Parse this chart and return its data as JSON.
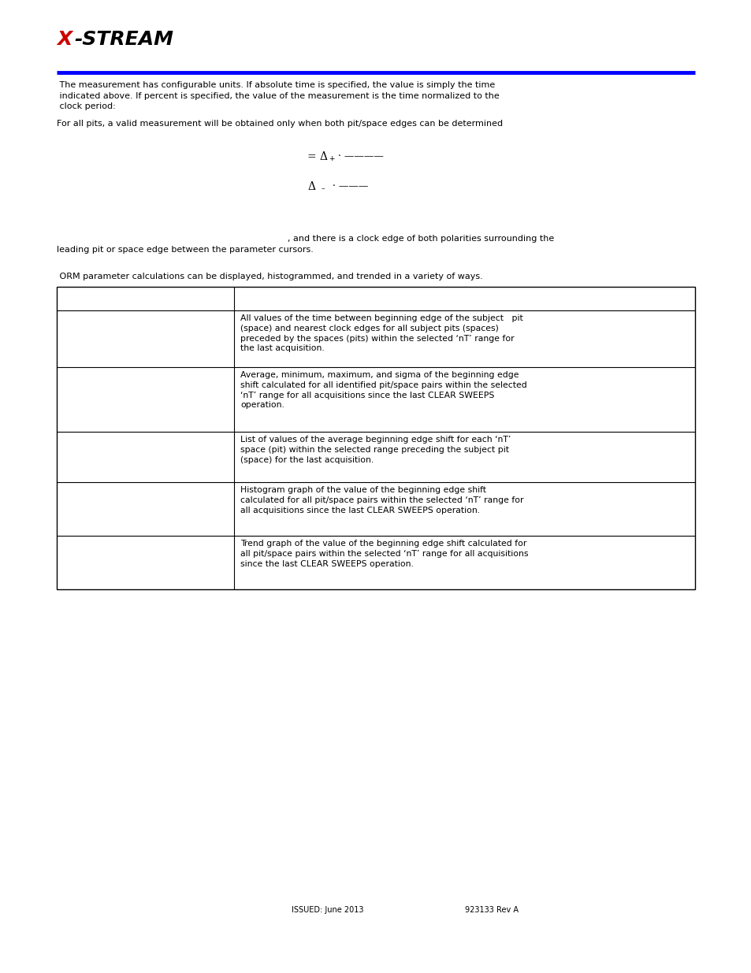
{
  "bg_color": "#ffffff",
  "logo_x_color": "#cc0000",
  "logo_stream_color": "#000000",
  "blue_line_color": "#0000ff",
  "header_text_1": " The measurement has configurable units. If absolute time is specified, the value is simply the time",
  "header_text_2": " indicated above. If percent is specified, the value of the measurement is the time normalized to the",
  "header_text_3": " clock period:",
  "para2_text": "For all pits, a valid measurement will be obtained only when both pit/space edges can be determined",
  "para3_text_part2": ", and there is a clock edge of both polarities surrounding the",
  "para3_text_line2": "leading pit or space edge between the parameter cursors.",
  "intro_table_text": " ORM parameter calculations can be displayed, histogrammed, and trended in a variety of ways.",
  "footer_left": "ISSUED: June 2013",
  "footer_right": "923133 Rev A",
  "row_texts": [
    "",
    "All values of the time between beginning edge of the subject   pit\n(space) and nearest clock edges for all subject pits (spaces)\npreceded by the spaces (pits) within the selected ‘nT’ range for\nthe last acquisition.",
    "Average, minimum, maximum, and sigma of the beginning edge\nshift calculated for all identified pit/space pairs within the selected\n‘nT’ range for all acquisitions since the last CLEAR SWEEPS\noperation.",
    "List of values of the average beginning edge shift for each ‘nT’\nspace (pit) within the selected range preceding the subject pit\n(space) for the last acquisition.",
    "Histogram graph of the value of the beginning edge shift\ncalculated for all pit/space pairs within the selected ‘nT’ range for\nall acquisitions since the last CLEAR SWEEPS operation.",
    "Trend graph of the value of the beginning edge shift calculated for\nall pit/space pairs within the selected ‘nT’ range for all acquisitions\nsince the last CLEAR SWEEPS operation."
  ]
}
